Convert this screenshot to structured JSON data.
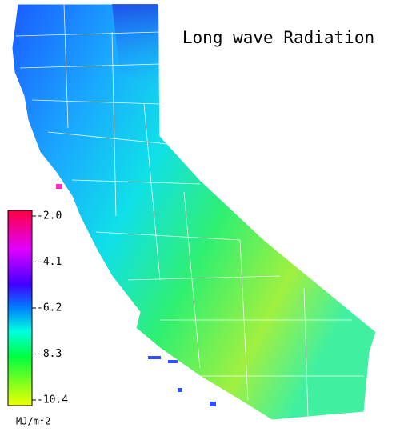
{
  "title": "Long wave Radiation",
  "colorbar": {
    "lim": [
      -10.4,
      -2.0
    ],
    "ticks": [
      {
        "value": -2.0,
        "label": "-2.0"
      },
      -4.1,
      -6.2,
      -8.3,
      -10.4
    ],
    "unit": "MJ/m↑2"
  }
}
